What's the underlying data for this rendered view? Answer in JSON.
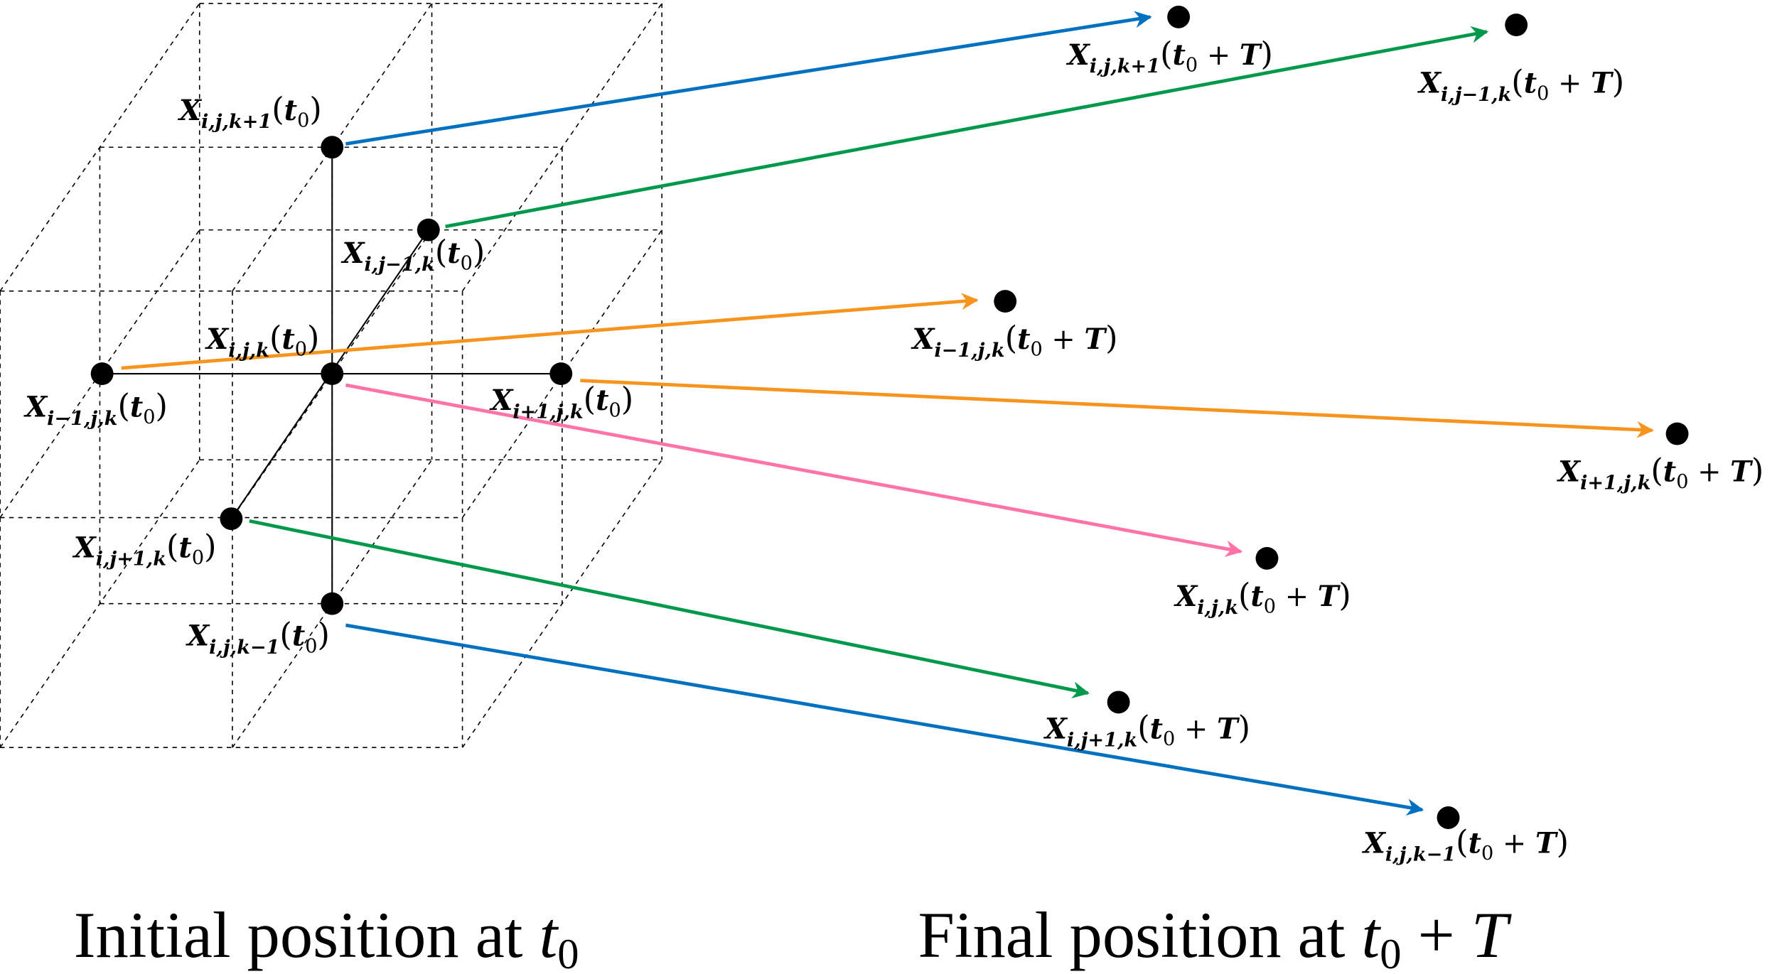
{
  "colors": {
    "blue": "#0070C0",
    "green": "#00994C",
    "orange": "#F7941D",
    "pink": "#FF73A8",
    "dot": "#000000"
  },
  "captions": {
    "initial_text": "Initial position at ",
    "initial_time": "t",
    "initial_sub": "0",
    "final_text": "Final position at ",
    "final_time": "t",
    "final_sub": "0",
    "final_plus": " + ",
    "final_T": "T"
  },
  "points": [
    {
      "id": "k+1",
      "sub": "i,j,k+1",
      "color": "blue"
    },
    {
      "id": "j-1",
      "sub": "i,j−1,k",
      "color": "green"
    },
    {
      "id": "i-1",
      "sub": "i−1,j,k",
      "color": "orange"
    },
    {
      "id": "i+1",
      "sub": "i+1,j,k",
      "color": "orange"
    },
    {
      "id": "c",
      "sub": "i,j,k",
      "color": "pink"
    },
    {
      "id": "j+1",
      "sub": "i,j+1,k",
      "color": "green"
    },
    {
      "id": "k-1",
      "sub": "i,j,k−1",
      "color": "blue"
    }
  ],
  "label_parts": {
    "X": "X",
    "t": "t",
    "zero": "0",
    "plus": " + ",
    "T": "T",
    "open": "(",
    "close": ")"
  }
}
